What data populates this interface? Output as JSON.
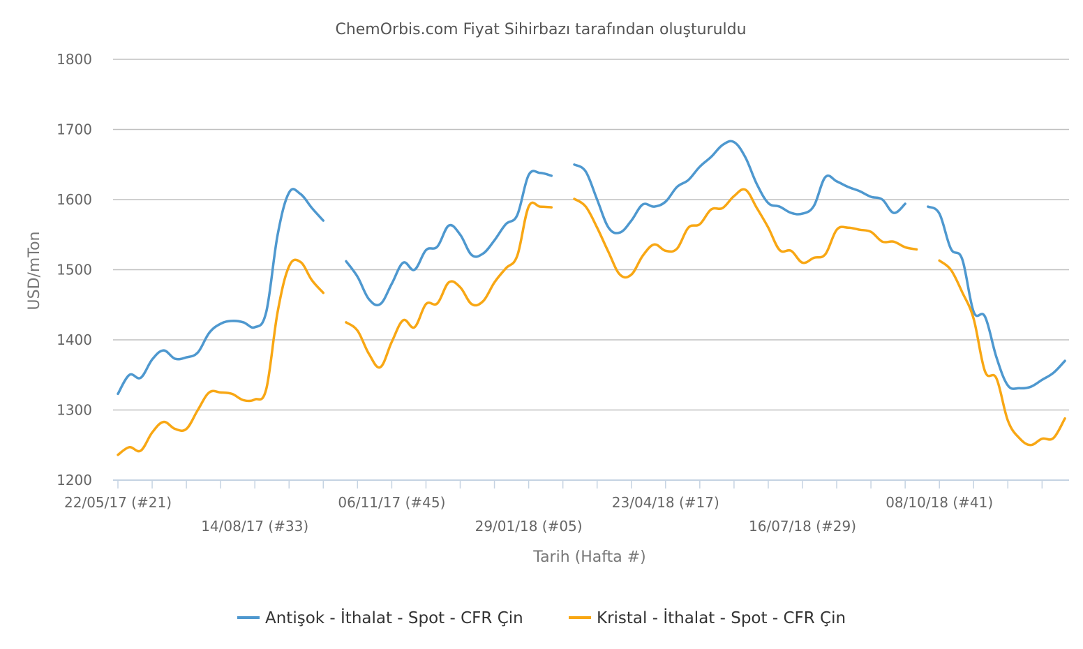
{
  "chart_data": {
    "type": "line",
    "title": "ChemOrbis.com Fiyat Sihirbazı tarafından oluşturuldu",
    "xlabel": "Tarih (Hafta #)",
    "ylabel": "USD/mTon",
    "ylim": [
      1200,
      1800
    ],
    "yticks": [
      1200,
      1300,
      1400,
      1500,
      1600,
      1700,
      1800
    ],
    "grid": true,
    "legend_position": "bottom-center",
    "x_tick_labels": [
      {
        "week": 0,
        "label": "22/05/17 (#21)"
      },
      {
        "week": 12,
        "label": "14/08/17 (#33)"
      },
      {
        "week": 24,
        "label": "06/11/17 (#45)"
      },
      {
        "week": 36,
        "label": "29/01/18 (#05)"
      },
      {
        "week": 48,
        "label": "23/04/18 (#17)"
      },
      {
        "week": 60,
        "label": "16/07/18 (#29)"
      },
      {
        "week": 72,
        "label": "08/10/18 (#41)"
      }
    ],
    "x_minor_ticks_every_weeks": 3,
    "x_week_range": [
      0,
      83.5
    ],
    "series": [
      {
        "name": "Antişok - İthalat - Spot - CFR Çin",
        "color": "#4e98cf",
        "segments": [
          [
            [
              0,
              1323
            ],
            [
              1,
              1350
            ],
            [
              2,
              1346
            ],
            [
              3,
              1372
            ],
            [
              4,
              1385
            ],
            [
              5,
              1373
            ],
            [
              6,
              1375
            ],
            [
              7,
              1382
            ],
            [
              8,
              1410
            ],
            [
              9,
              1423
            ],
            [
              10,
              1427
            ],
            [
              11,
              1425
            ],
            [
              12,
              1418
            ],
            [
              13,
              1440
            ],
            [
              14,
              1550
            ],
            [
              15,
              1610
            ],
            [
              16,
              1608
            ],
            [
              17,
              1588
            ],
            [
              18,
              1570
            ]
          ],
          [
            [
              20,
              1512
            ],
            [
              21,
              1490
            ],
            [
              22,
              1458
            ],
            [
              23,
              1451
            ],
            [
              24,
              1480
            ],
            [
              25,
              1510
            ],
            [
              26,
              1500
            ],
            [
              27,
              1528
            ],
            [
              28,
              1533
            ],
            [
              29,
              1563
            ],
            [
              30,
              1550
            ],
            [
              31,
              1521
            ],
            [
              32,
              1523
            ],
            [
              33,
              1542
            ],
            [
              34,
              1565
            ],
            [
              35,
              1578
            ],
            [
              36,
              1635
            ],
            [
              37,
              1638
            ],
            [
              38,
              1634
            ]
          ],
          [
            [
              40,
              1650
            ],
            [
              41,
              1640
            ],
            [
              42,
              1600
            ],
            [
              43,
              1560
            ],
            [
              44,
              1553
            ],
            [
              45,
              1570
            ],
            [
              46,
              1593
            ],
            [
              47,
              1590
            ],
            [
              48,
              1597
            ],
            [
              49,
              1618
            ],
            [
              50,
              1628
            ],
            [
              51,
              1647
            ],
            [
              52,
              1661
            ],
            [
              53,
              1678
            ],
            [
              54,
              1682
            ],
            [
              55,
              1660
            ],
            [
              56,
              1622
            ],
            [
              57,
              1595
            ],
            [
              58,
              1590
            ],
            [
              59,
              1581
            ],
            [
              60,
              1580
            ],
            [
              61,
              1591
            ],
            [
              62,
              1632
            ],
            [
              63,
              1626
            ],
            [
              64,
              1618
            ],
            [
              65,
              1612
            ],
            [
              66,
              1604
            ],
            [
              67,
              1600
            ],
            [
              68,
              1581
            ],
            [
              69,
              1594
            ]
          ],
          [
            [
              71,
              1590
            ],
            [
              72,
              1580
            ],
            [
              73,
              1530
            ],
            [
              74,
              1515
            ],
            [
              75,
              1440
            ],
            [
              76,
              1433
            ],
            [
              77,
              1375
            ],
            [
              78,
              1335
            ],
            [
              79,
              1331
            ],
            [
              80,
              1333
            ],
            [
              81,
              1343
            ],
            [
              82,
              1353
            ],
            [
              83,
              1370
            ]
          ]
        ]
      },
      {
        "name": "Kristal - İthalat - Spot - CFR Çin",
        "color": "#f8a714",
        "segments": [
          [
            [
              0,
              1236
            ],
            [
              1,
              1247
            ],
            [
              2,
              1242
            ],
            [
              3,
              1268
            ],
            [
              4,
              1283
            ],
            [
              5,
              1273
            ],
            [
              6,
              1273
            ],
            [
              7,
              1300
            ],
            [
              8,
              1325
            ],
            [
              9,
              1325
            ],
            [
              10,
              1323
            ],
            [
              11,
              1314
            ],
            [
              12,
              1315
            ],
            [
              13,
              1330
            ],
            [
              14,
              1440
            ],
            [
              15,
              1505
            ],
            [
              16,
              1511
            ],
            [
              17,
              1485
            ],
            [
              18,
              1467
            ]
          ],
          [
            [
              20,
              1425
            ],
            [
              21,
              1413
            ],
            [
              22,
              1380
            ],
            [
              23,
              1361
            ],
            [
              24,
              1397
            ],
            [
              25,
              1428
            ],
            [
              26,
              1418
            ],
            [
              27,
              1451
            ],
            [
              28,
              1452
            ],
            [
              29,
              1482
            ],
            [
              30,
              1475
            ],
            [
              31,
              1451
            ],
            [
              32,
              1455
            ],
            [
              33,
              1482
            ],
            [
              34,
              1502
            ],
            [
              35,
              1520
            ],
            [
              36,
              1590
            ],
            [
              37,
              1590
            ],
            [
              38,
              1589
            ]
          ],
          [
            [
              40,
              1601
            ],
            [
              41,
              1590
            ],
            [
              42,
              1560
            ],
            [
              43,
              1525
            ],
            [
              44,
              1493
            ],
            [
              45,
              1493
            ],
            [
              46,
              1520
            ],
            [
              47,
              1536
            ],
            [
              48,
              1527
            ],
            [
              49,
              1530
            ],
            [
              50,
              1560
            ],
            [
              51,
              1565
            ],
            [
              52,
              1586
            ],
            [
              53,
              1588
            ],
            [
              54,
              1605
            ],
            [
              55,
              1614
            ],
            [
              56,
              1588
            ],
            [
              57,
              1560
            ],
            [
              58,
              1528
            ],
            [
              59,
              1527
            ],
            [
              60,
              1510
            ],
            [
              61,
              1517
            ],
            [
              62,
              1522
            ],
            [
              63,
              1557
            ],
            [
              64,
              1560
            ],
            [
              65,
              1557
            ],
            [
              66,
              1554
            ],
            [
              67,
              1540
            ],
            [
              68,
              1540
            ],
            [
              69,
              1532
            ],
            [
              70,
              1529
            ]
          ],
          [
            [
              72,
              1513
            ],
            [
              73,
              1500
            ],
            [
              74,
              1468
            ],
            [
              75,
              1430
            ],
            [
              76,
              1355
            ],
            [
              77,
              1345
            ],
            [
              78,
              1285
            ],
            [
              79,
              1260
            ],
            [
              80,
              1250
            ],
            [
              81,
              1259
            ],
            [
              82,
              1260
            ],
            [
              83,
              1288
            ]
          ]
        ]
      }
    ]
  }
}
